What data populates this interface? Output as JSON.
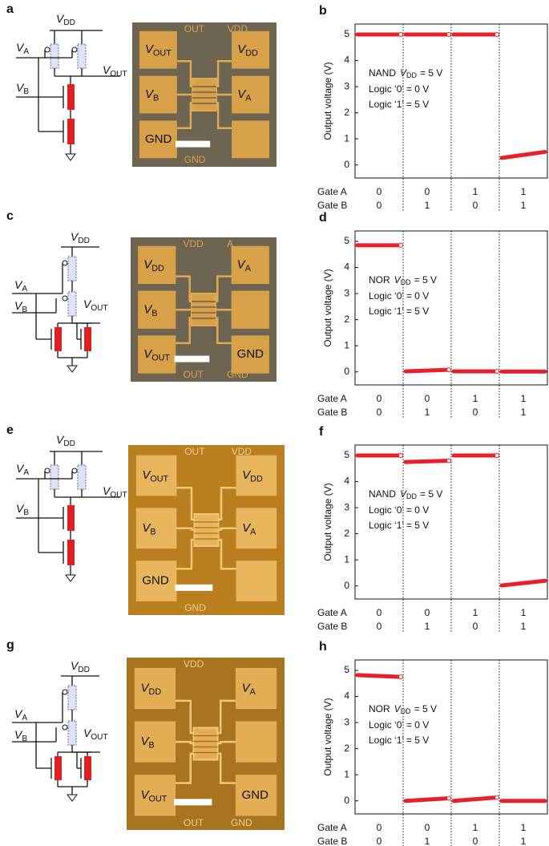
{
  "rows": [
    {
      "circuit_panel": "a",
      "circuit": {
        "vdd": {
          "symbol": "V",
          "sub": "DD"
        },
        "va": {
          "symbol": "V",
          "sub": "A"
        },
        "vb": {
          "symbol": "V",
          "sub": "B"
        },
        "vout": {
          "symbol": "V",
          "sub": "OUT"
        }
      },
      "micrograph": {
        "pads": [
          {
            "symbol": "V",
            "sub": "OUT"
          },
          {
            "symbol": "V",
            "sub": "DD"
          },
          {
            "symbol": "V",
            "sub": "B"
          },
          {
            "symbol": "V",
            "sub": "A"
          },
          {
            "text": "GND"
          },
          null
        ],
        "top_marks": [
          "OUT",
          "VDD"
        ],
        "bottom_marks": [
          "GND"
        ]
      }
    },
    {
      "circuit_panel": "c",
      "circuit": {
        "vdd": {
          "symbol": "V",
          "sub": "DD"
        },
        "va": {
          "symbol": "V",
          "sub": "A"
        },
        "vb": {
          "symbol": "V",
          "sub": "B"
        },
        "vout": {
          "symbol": "V",
          "sub": "OUT"
        }
      },
      "micrograph": {
        "pads": [
          {
            "symbol": "V",
            "sub": "DD"
          },
          {
            "symbol": "V",
            "sub": "A"
          },
          {
            "symbol": "V",
            "sub": "B"
          },
          null,
          {
            "symbol": "V",
            "sub": "OUT"
          },
          {
            "text": "GND"
          }
        ],
        "top_marks": [
          "VDD",
          "A"
        ],
        "bottom_marks": [
          "OUT",
          "GND"
        ]
      }
    },
    {
      "circuit_panel": "e",
      "circuit": {
        "vdd": {
          "symbol": "V",
          "sub": "DD"
        },
        "va": {
          "symbol": "V",
          "sub": "A"
        },
        "vb": {
          "symbol": "V",
          "sub": "B"
        },
        "vout": {
          "symbol": "V",
          "sub": "OUT"
        }
      },
      "micrograph": {
        "pads": [
          {
            "symbol": "V",
            "sub": "OUT"
          },
          {
            "symbol": "V",
            "sub": "DD"
          },
          {
            "symbol": "V",
            "sub": "B"
          },
          {
            "symbol": "V",
            "sub": "A"
          },
          {
            "text": "GND"
          },
          null
        ],
        "top_marks": [
          "OUT",
          "VDD"
        ],
        "bottom_marks": [
          "GND"
        ]
      }
    },
    {
      "circuit_panel": "g",
      "circuit": {
        "vdd": {
          "symbol": "V",
          "sub": "DD"
        },
        "va": {
          "symbol": "V",
          "sub": "A"
        },
        "vb": {
          "symbol": "V",
          "sub": "B"
        },
        "vout": {
          "symbol": "V",
          "sub": "OUT"
        }
      },
      "micrograph": {
        "pads": [
          {
            "symbol": "V",
            "sub": "DD"
          },
          {
            "symbol": "V",
            "sub": "A"
          },
          {
            "symbol": "V",
            "sub": "B"
          },
          null,
          {
            "symbol": "V",
            "sub": "OUT"
          },
          {
            "text": "GND"
          }
        ],
        "top_marks": [
          "VDD"
        ],
        "bottom_marks": [
          "OUT",
          "GND"
        ]
      }
    }
  ],
  "chart_data": [
    {
      "type": "line",
      "panel": "b",
      "annotation": {
        "logic": "NAND",
        "vdd": {
          "symbol": "V",
          "sub": "DD"
        },
        "value": "= 5 V"
      },
      "logic_lines": [
        "Logic ‘0’ = 0 V",
        "Logic ‘1’ = 5 V"
      ],
      "y_label": "Output voltage (V)",
      "ylim": [
        -0.5,
        5.4
      ],
      "yticks": [
        0,
        1,
        2,
        3,
        4,
        5
      ],
      "color": "#e8202a",
      "row_labels": [
        "Gate A",
        "Gate B"
      ],
      "gate_a": [
        0,
        0,
        1,
        1
      ],
      "gate_b": [
        0,
        1,
        0,
        1
      ],
      "segments": [
        [
          5,
          5
        ],
        [
          5,
          5
        ],
        [
          5,
          5
        ],
        [
          0.27,
          0.5
        ]
      ]
    },
    {
      "type": "line",
      "panel": "d",
      "annotation": {
        "logic": "NOR",
        "vdd": {
          "symbol": "V",
          "sub": "DD"
        },
        "value": "= 5 V"
      },
      "logic_lines": [
        "Logic ‘0’ = 0 V",
        "Logic ‘1’ = 5 V"
      ],
      "y_label": "Output voltage (V)",
      "ylim": [
        -0.5,
        5.4
      ],
      "yticks": [
        0,
        1,
        2,
        3,
        4,
        5
      ],
      "color": "#e8202a",
      "row_labels": [
        "Gate A",
        "Gate B"
      ],
      "gate_a": [
        0,
        0,
        1,
        1
      ],
      "gate_b": [
        0,
        1,
        0,
        1
      ],
      "segments": [
        [
          4.85,
          4.85
        ],
        [
          0.02,
          0.08
        ],
        [
          0.02,
          0.02
        ],
        [
          0.01,
          0.01
        ]
      ]
    },
    {
      "type": "line",
      "panel": "f",
      "annotation": {
        "logic": "NAND",
        "vdd": {
          "symbol": "V",
          "sub": "DD"
        },
        "value": "= 5 V"
      },
      "logic_lines": [
        "Logic ‘0’ = 0 V",
        "Logic ‘1’ = 5 V"
      ],
      "y_label": "Output voltage (V)",
      "ylim": [
        -0.5,
        5.4
      ],
      "yticks": [
        0,
        1,
        2,
        3,
        4,
        5
      ],
      "color": "#e8202a",
      "row_labels": [
        "Gate A",
        "Gate B"
      ],
      "gate_a": [
        0,
        0,
        1,
        1
      ],
      "gate_b": [
        0,
        1,
        0,
        1
      ],
      "segments": [
        [
          5,
          5
        ],
        [
          4.75,
          4.8
        ],
        [
          5,
          5
        ],
        [
          0.02,
          0.2
        ]
      ]
    },
    {
      "type": "line",
      "panel": "h",
      "annotation": {
        "logic": "NOR",
        "vdd": {
          "symbol": "V",
          "sub": "DD"
        },
        "value": "= 5 V"
      },
      "logic_lines": [
        "Logic ‘0’ = 0 V",
        "Logic ‘1’ = 5 V"
      ],
      "y_label": "Output voltage (V)",
      "ylim": [
        -0.5,
        5.4
      ],
      "yticks": [
        0,
        1,
        2,
        3,
        4,
        5
      ],
      "color": "#e8202a",
      "row_labels": [
        "Gate A",
        "Gate B"
      ],
      "gate_a": [
        0,
        0,
        1,
        1
      ],
      "gate_b": [
        0,
        1,
        0,
        1
      ],
      "segments": [
        [
          4.82,
          4.75
        ],
        [
          0,
          0.1
        ],
        [
          0,
          0.13
        ],
        [
          0,
          0
        ]
      ]
    }
  ]
}
